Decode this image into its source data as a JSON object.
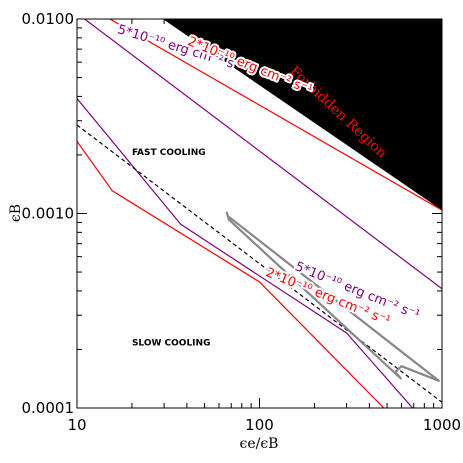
{
  "chart_data": {
    "type": "line",
    "x_scale": "log",
    "y_scale": "log",
    "xlim": [
      10,
      1000
    ],
    "ylim": [
      0.0001,
      0.01
    ],
    "xlabel": "ϵe/ϵB",
    "ylabel": "ϵB",
    "x_ticks": [
      {
        "value": 10,
        "label": "10"
      },
      {
        "value": 100,
        "label": "100"
      },
      {
        "value": 1000,
        "label": "1000"
      }
    ],
    "y_ticks": [
      {
        "value": 0.0001,
        "label": "0.0001"
      },
      {
        "value": 0.001,
        "label": "0.0010"
      },
      {
        "value": 0.01,
        "label": "0.0100"
      }
    ],
    "forbidden_region": {
      "label": "Forbidden Region",
      "color": "#000000",
      "text_color": "#ff0000",
      "polygon": [
        [
          27.8,
          0.0104
        ],
        [
          1000,
          0.0104
        ],
        [
          1000,
          0.00104
        ]
      ]
    },
    "regions": [
      {
        "label": "FAST COOLING",
        "x": 20,
        "y": 0.002
      },
      {
        "label": "SLOW COOLING",
        "x": 20,
        "y": 0.00021
      }
    ],
    "series": [
      {
        "id": "red-upper",
        "color": "#ff0000",
        "style": "solid",
        "points": [
          [
            14.6,
            0.0102
          ],
          [
            1000,
            0.00104
          ]
        ]
      },
      {
        "id": "purple-upper",
        "color": "#800080",
        "style": "solid",
        "points": [
          [
            10,
            0.0107
          ],
          [
            1000,
            0.00041
          ]
        ]
      },
      {
        "id": "purple-lower",
        "color": "#800080",
        "style": "solid",
        "points": [
          [
            10,
            0.0039
          ],
          [
            37,
            0.00088
          ],
          [
            300,
            0.000243
          ],
          [
            690,
            0.0001
          ]
        ]
      },
      {
        "id": "red-lower",
        "color": "#ff0000",
        "style": "solid",
        "points": [
          [
            10,
            0.00235
          ],
          [
            15.6,
            0.00131
          ],
          [
            100,
            0.000445
          ],
          [
            480,
            0.0001
          ]
        ]
      },
      {
        "id": "dashed-boundary",
        "color": "#000000",
        "style": "dashed",
        "points": [
          [
            10,
            0.00285
          ],
          [
            1000,
            0.000107
          ]
        ]
      },
      {
        "id": "gray-track",
        "color": "#888888",
        "style": "solid",
        "points": [
          [
            66,
            0.00102
          ],
          [
            68,
            0.00093
          ],
          [
            595,
            0.000142
          ],
          [
            555,
            0.000153
          ],
          [
            600,
            0.000164
          ],
          [
            960,
            0.000138
          ],
          [
            68,
            0.00096
          ]
        ]
      }
    ],
    "annotations": [
      {
        "value": "5*10⁻¹⁰ erg cm⁻² s⁻¹",
        "color": "#800080",
        "x": 16.5,
        "y": 0.0085,
        "angle": 17
      },
      {
        "value": "2*10⁻¹⁰ erg cm⁻² s⁻¹",
        "color": "#ff0000",
        "x": 40,
        "y": 0.0074,
        "angle": 22
      },
      {
        "value": "5*10⁻¹⁰ erg cm⁻² s⁻¹",
        "color": "#800080",
        "x": 155,
        "y": 0.000515,
        "angle": 22
      },
      {
        "value": "2*10⁻¹⁰ erg cm⁻² s⁻¹",
        "color": "#ff0000",
        "x": 107,
        "y": 0.00048,
        "angle": 22
      }
    ]
  }
}
